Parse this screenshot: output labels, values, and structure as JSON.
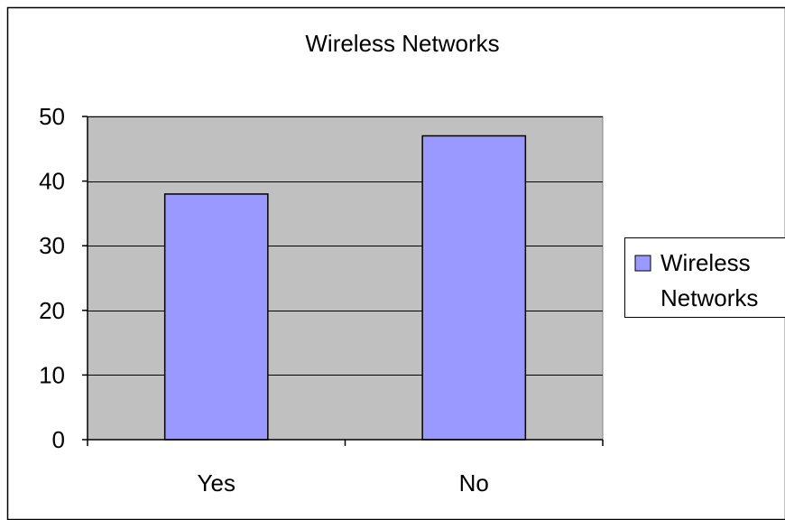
{
  "chart_data": {
    "type": "bar",
    "title": "Wireless Networks",
    "categories": [
      "Yes",
      "No"
    ],
    "series": [
      {
        "name": "Wireless Networks",
        "values": [
          38,
          47
        ],
        "color": "#9999ff"
      }
    ],
    "ylim": [
      0,
      50
    ],
    "yticks": [
      0,
      10,
      20,
      30,
      40,
      50
    ],
    "xlabel": "",
    "ylabel": "",
    "grid": true,
    "legend": {
      "placement": "right",
      "label_lines": [
        "Wireless",
        "Networks"
      ]
    },
    "plot_background": "#c0c0c0"
  }
}
